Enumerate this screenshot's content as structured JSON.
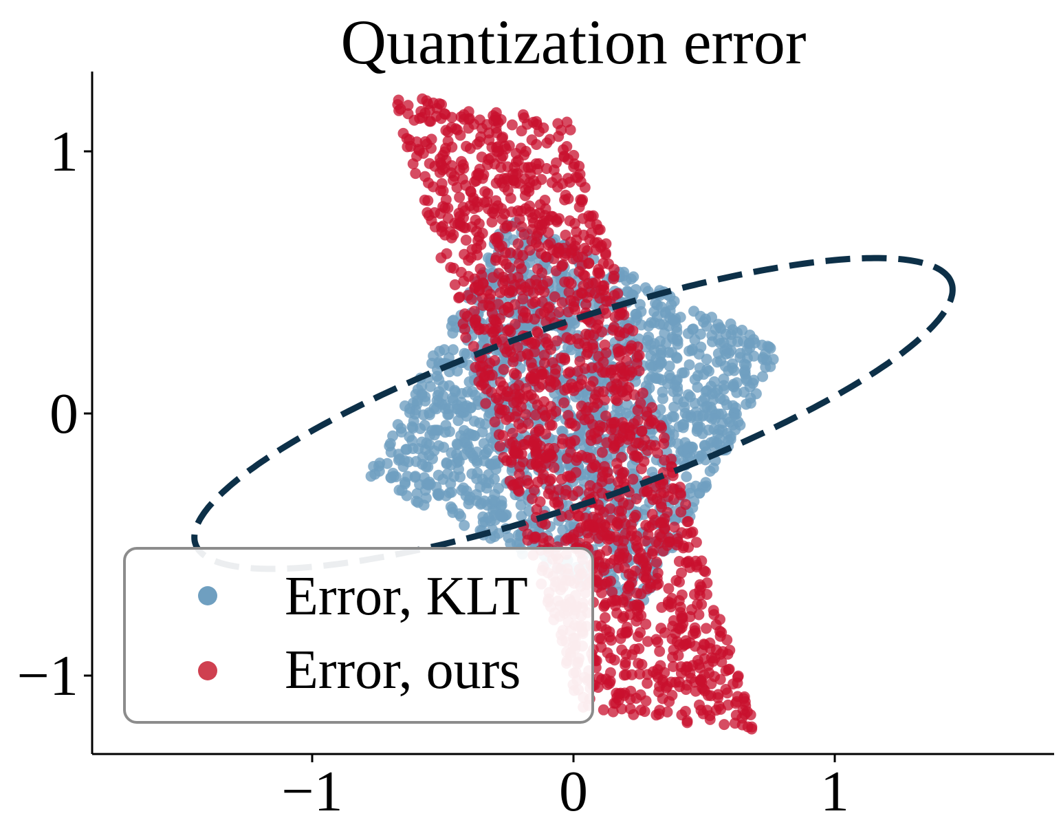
{
  "chart_data": {
    "type": "scatter",
    "title": "Quantization error",
    "xlabel": "",
    "ylabel": "",
    "xlim": [
      -1.85,
      1.85
    ],
    "ylim": [
      -1.3,
      1.3
    ],
    "x_ticks": [
      {
        "value": -1,
        "label": "−1"
      },
      {
        "value": 0,
        "label": "0"
      },
      {
        "value": 1,
        "label": "1"
      }
    ],
    "y_ticks": [
      {
        "value": 1,
        "label": "1"
      },
      {
        "value": 0,
        "label": "0"
      },
      {
        "value": -1,
        "label": "−1"
      }
    ],
    "grid": false,
    "legend": {
      "placement": "lower-left"
    },
    "series": [
      {
        "name": "Error, KLT",
        "color": "#6f9fc0",
        "distribution": "uniform parallelogram region, approx. 1600 points",
        "corners": [
          [
            -0.25,
            0.75
          ],
          [
            0.8,
            0.25
          ],
          [
            0.25,
            -0.75
          ],
          [
            -0.8,
            -0.25
          ]
        ]
      },
      {
        "name": "Error, ours",
        "color": "#c8102e",
        "distribution": "uniform parallelogram region, approx. 1600 points",
        "corners": [
          [
            -0.7,
            1.22
          ],
          [
            -0.02,
            1.12
          ],
          [
            0.7,
            -1.22
          ],
          [
            0.02,
            -1.12
          ]
        ]
      }
    ],
    "overlay": {
      "shape": "ellipse",
      "style": "dashed",
      "color": "#0d3048",
      "center": [
        0,
        0
      ],
      "semi_major": 1.53,
      "semi_minor": 0.34,
      "angle_deg": 19
    }
  }
}
